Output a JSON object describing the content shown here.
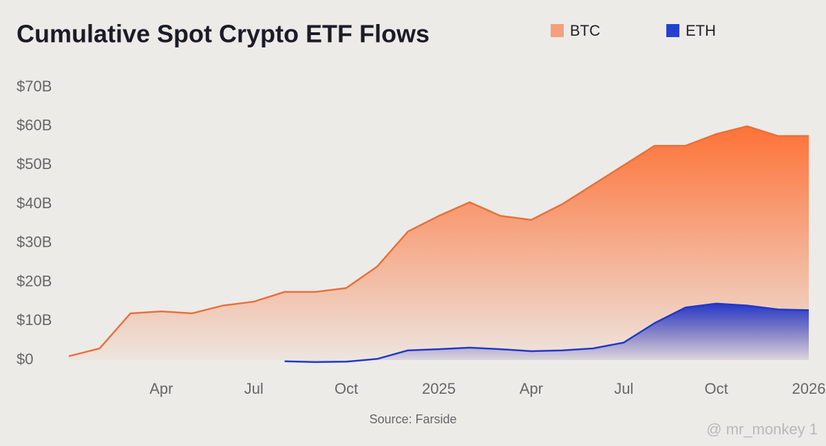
{
  "chart_data": {
    "type": "area",
    "title": "Cumulative Spot Crypto ETF Flows",
    "source": "Source: Farside",
    "watermark": "@ mr_monkey 1",
    "x": [
      "2024-01",
      "2024-02",
      "2024-03",
      "2024-04",
      "2024-05",
      "2024-06",
      "2024-07",
      "2024-08",
      "2024-09",
      "2024-10",
      "2024-11",
      "2024-12",
      "2025-01",
      "2025-02",
      "2025-03",
      "2025-04",
      "2025-05",
      "2025-06",
      "2025-07",
      "2025-08",
      "2025-09",
      "2025-10",
      "2025-11",
      "2025-12",
      "2026-01"
    ],
    "series": [
      {
        "name": "BTC",
        "color": "#e8703a",
        "legend_color": "#f4a07c",
        "values": [
          1,
          3,
          12,
          12.5,
          12,
          14,
          15,
          17.5,
          17.5,
          18.5,
          24,
          33,
          37,
          40.5,
          37,
          36,
          40,
          45,
          50,
          55,
          55,
          58,
          60,
          57.5,
          57.5
        ]
      },
      {
        "name": "ETH",
        "color": "#2236c8",
        "legend_color": "#2540d0",
        "values": [
          null,
          null,
          null,
          null,
          null,
          null,
          null,
          -0.3,
          -0.5,
          -0.4,
          0.3,
          2.5,
          2.8,
          3.2,
          2.8,
          2.3,
          2.5,
          3,
          4.5,
          9.5,
          13.5,
          14.5,
          14,
          13,
          12.8
        ]
      }
    ],
    "xlim": [
      "2024-01",
      "2026-01"
    ],
    "xticks": [
      {
        "value": "2024-04",
        "label": "Apr"
      },
      {
        "value": "2024-07",
        "label": "Jul"
      },
      {
        "value": "2024-10",
        "label": "Oct"
      },
      {
        "value": "2025-01",
        "label": "2025"
      },
      {
        "value": "2025-04",
        "label": "Apr"
      },
      {
        "value": "2025-07",
        "label": "Jul"
      },
      {
        "value": "2025-10",
        "label": "Oct"
      },
      {
        "value": "2026-01",
        "label": "2026"
      }
    ],
    "ylim": [
      0,
      70
    ],
    "yticks": [
      {
        "value": 0,
        "label": "$0"
      },
      {
        "value": 10,
        "label": "$10B"
      },
      {
        "value": 20,
        "label": "$20B"
      },
      {
        "value": 30,
        "label": "$30B"
      },
      {
        "value": 40,
        "label": "$40B"
      },
      {
        "value": 50,
        "label": "$50B"
      },
      {
        "value": 60,
        "label": "$60B"
      },
      {
        "value": 70,
        "label": "$70B"
      }
    ],
    "grid": false
  }
}
